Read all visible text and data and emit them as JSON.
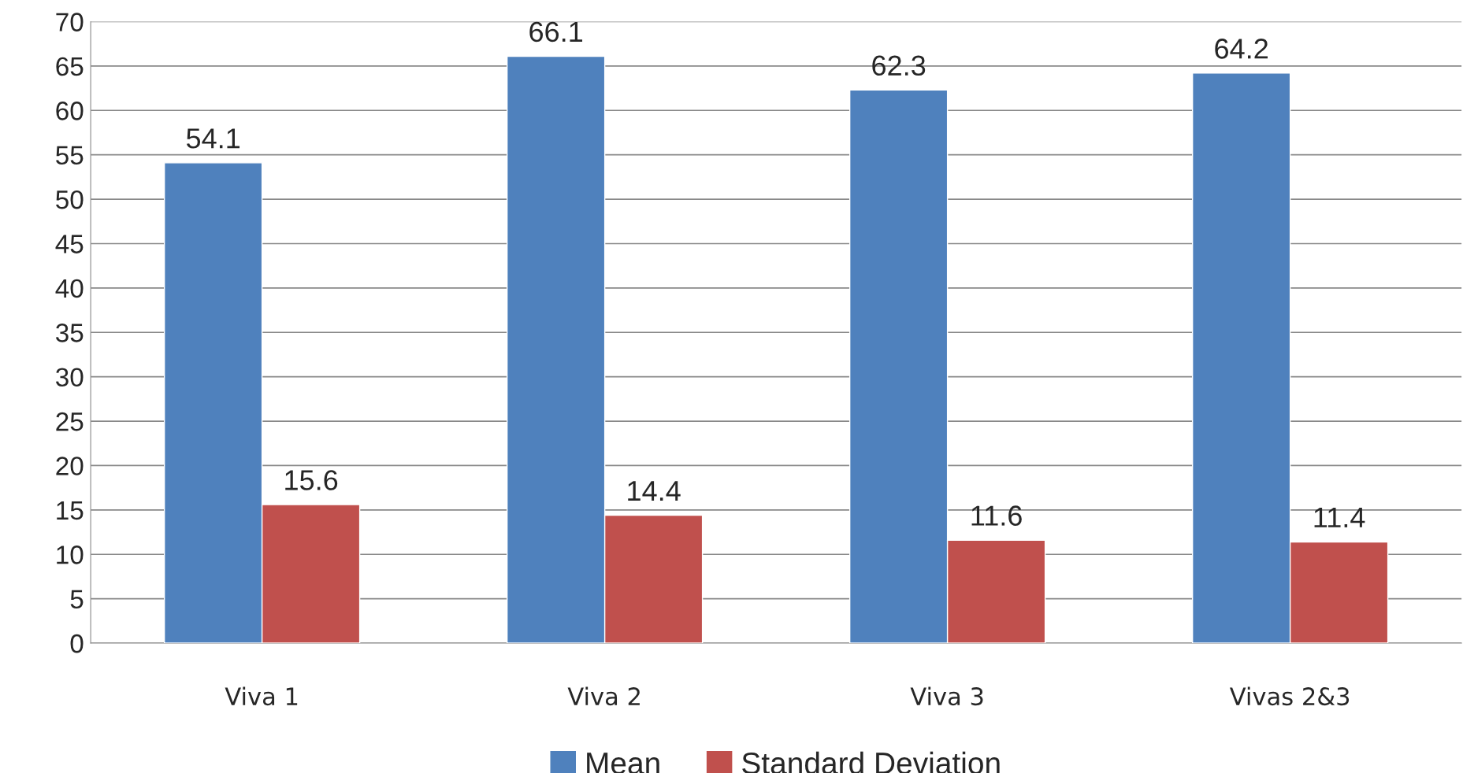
{
  "chart_data": {
    "type": "bar",
    "categories": [
      "Viva 1",
      "Viva 2",
      "Viva 3",
      "Vivas 2&3"
    ],
    "series": [
      {
        "name": "Mean",
        "color": "#4f81bd",
        "values": [
          54.1,
          66.1,
          62.3,
          64.2
        ]
      },
      {
        "name": "Standard Deviation",
        "color": "#c0504d",
        "values": [
          15.6,
          14.4,
          11.6,
          11.4
        ]
      }
    ],
    "ylim": [
      0,
      70
    ],
    "yticks": [
      0,
      5,
      10,
      15,
      20,
      25,
      30,
      35,
      40,
      45,
      50,
      55,
      60,
      65,
      70
    ],
    "grid": "y",
    "legend": "bottom",
    "data_labels": true
  }
}
